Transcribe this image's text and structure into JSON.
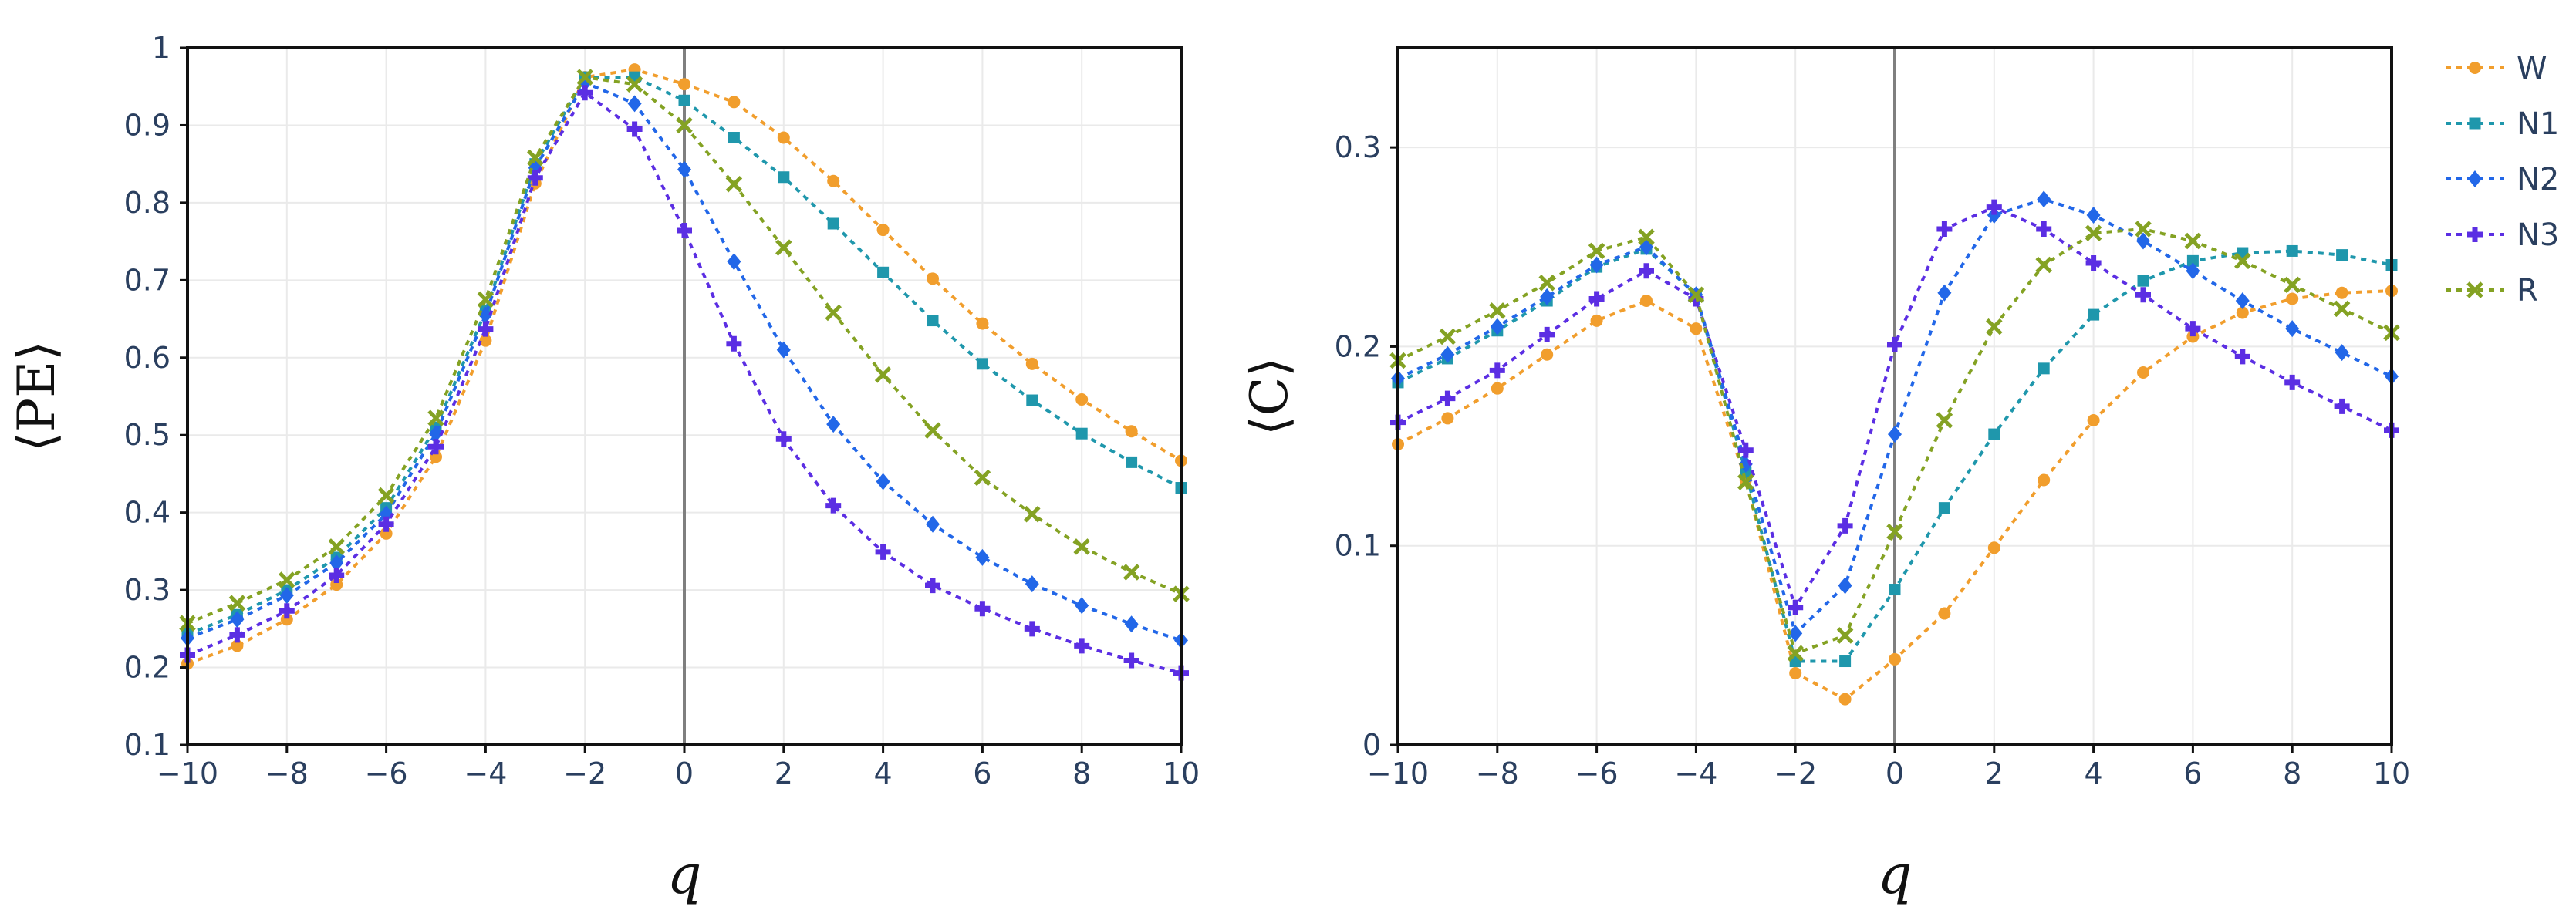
{
  "chart_data": [
    {
      "type": "line",
      "xlabel": "q",
      "ylabel": "⟨PE⟩",
      "xlim": [
        -10,
        10
      ],
      "ylim": [
        0.1,
        1.0
      ],
      "xticks": [
        -10,
        -8,
        -6,
        -4,
        -2,
        0,
        2,
        4,
        6,
        8,
        10
      ],
      "xtick_labels": [
        "−10",
        "−8",
        "−6",
        "−4",
        "−2",
        "0",
        "2",
        "4",
        "6",
        "8",
        "10"
      ],
      "yticks": [
        0.1,
        0.2,
        0.3,
        0.4,
        0.5,
        0.6,
        0.7,
        0.8,
        0.9,
        1.0
      ],
      "ytick_labels": [
        "0.1",
        "0.2",
        "0.3",
        "0.4",
        "0.5",
        "0.6",
        "0.7",
        "0.8",
        "0.9",
        "1"
      ],
      "grid": true,
      "zero_line_x": 0,
      "x": [
        -10,
        -9,
        -8,
        -7,
        -6,
        -5,
        -4,
        -3,
        -2,
        -1,
        0,
        1,
        2,
        3,
        4,
        5,
        6,
        7,
        8,
        9,
        10
      ],
      "series": [
        {
          "name": "W",
          "color": "#F19E2D",
          "marker": "circle",
          "values": [
            0.205,
            0.228,
            0.262,
            0.307,
            0.373,
            0.472,
            0.622,
            0.825,
            0.962,
            0.972,
            0.953,
            0.93,
            0.884,
            0.828,
            0.765,
            0.702,
            0.644,
            0.592,
            0.546,
            0.505,
            0.467
          ]
        },
        {
          "name": "N1",
          "color": "#1F97AC",
          "marker": "square",
          "values": [
            0.243,
            0.268,
            0.3,
            0.342,
            0.406,
            0.51,
            0.66,
            0.85,
            0.962,
            0.962,
            0.932,
            0.884,
            0.833,
            0.773,
            0.71,
            0.648,
            0.592,
            0.545,
            0.502,
            0.465,
            0.432
          ]
        },
        {
          "name": "N2",
          "color": "#2267E8",
          "marker": "diamond",
          "values": [
            0.238,
            0.262,
            0.293,
            0.335,
            0.398,
            0.502,
            0.655,
            0.845,
            0.955,
            0.928,
            0.843,
            0.724,
            0.61,
            0.514,
            0.44,
            0.385,
            0.342,
            0.308,
            0.28,
            0.256,
            0.235
          ]
        },
        {
          "name": "N3",
          "color": "#5B2EE3",
          "marker": "cross",
          "values": [
            0.216,
            0.242,
            0.273,
            0.319,
            0.385,
            0.485,
            0.637,
            0.832,
            0.942,
            0.895,
            0.764,
            0.618,
            0.495,
            0.409,
            0.349,
            0.306,
            0.276,
            0.25,
            0.228,
            0.209,
            0.193
          ]
        },
        {
          "name": "R",
          "color": "#84A223",
          "marker": "x",
          "values": [
            0.257,
            0.283,
            0.313,
            0.356,
            0.422,
            0.522,
            0.675,
            0.858,
            0.962,
            0.953,
            0.9,
            0.824,
            0.742,
            0.658,
            0.578,
            0.506,
            0.445,
            0.398,
            0.356,
            0.323,
            0.295
          ]
        }
      ]
    },
    {
      "type": "line",
      "xlabel": "q",
      "ylabel": "⟨C⟩",
      "xlim": [
        -10,
        10
      ],
      "ylim": [
        0,
        0.35
      ],
      "xticks": [
        -10,
        -8,
        -6,
        -4,
        -2,
        0,
        2,
        4,
        6,
        8,
        10
      ],
      "xtick_labels": [
        "−10",
        "−8",
        "−6",
        "−4",
        "−2",
        "0",
        "2",
        "4",
        "6",
        "8",
        "10"
      ],
      "yticks": [
        0,
        0.1,
        0.2,
        0.3
      ],
      "ytick_labels": [
        "0",
        "0.1",
        "0.2",
        "0.3"
      ],
      "grid": true,
      "zero_line_x": 0,
      "legend": "right",
      "x": [
        -10,
        -9,
        -8,
        -7,
        -6,
        -5,
        -4,
        -3,
        -2,
        -1,
        0,
        1,
        2,
        3,
        4,
        5,
        6,
        7,
        8,
        9,
        10
      ],
      "series": [
        {
          "name": "W",
          "color": "#F19E2D",
          "marker": "circle",
          "values": [
            0.151,
            0.164,
            0.179,
            0.196,
            0.213,
            0.223,
            0.209,
            0.133,
            0.036,
            0.023,
            0.043,
            0.066,
            0.099,
            0.133,
            0.163,
            0.187,
            0.205,
            0.217,
            0.224,
            0.227,
            0.228
          ]
        },
        {
          "name": "N1",
          "color": "#1F97AC",
          "marker": "square",
          "values": [
            0.182,
            0.194,
            0.208,
            0.223,
            0.24,
            0.249,
            0.226,
            0.137,
            0.042,
            0.042,
            0.078,
            0.119,
            0.156,
            0.189,
            0.216,
            0.233,
            0.243,
            0.247,
            0.248,
            0.246,
            0.241
          ]
        },
        {
          "name": "N2",
          "color": "#2267E8",
          "marker": "diamond",
          "values": [
            0.184,
            0.196,
            0.21,
            0.225,
            0.241,
            0.25,
            0.226,
            0.141,
            0.056,
            0.08,
            0.156,
            0.227,
            0.266,
            0.274,
            0.266,
            0.253,
            0.238,
            0.223,
            0.209,
            0.197,
            0.185
          ]
        },
        {
          "name": "N3",
          "color": "#5B2EE3",
          "marker": "cross",
          "values": [
            0.162,
            0.174,
            0.188,
            0.206,
            0.224,
            0.238,
            0.224,
            0.148,
            0.069,
            0.11,
            0.201,
            0.259,
            0.27,
            0.259,
            0.242,
            0.226,
            0.209,
            0.195,
            0.182,
            0.17,
            0.158
          ]
        },
        {
          "name": "R",
          "color": "#84A223",
          "marker": "x",
          "values": [
            0.193,
            0.205,
            0.218,
            0.232,
            0.248,
            0.255,
            0.226,
            0.132,
            0.046,
            0.055,
            0.107,
            0.163,
            0.21,
            0.241,
            0.257,
            0.259,
            0.253,
            0.243,
            0.231,
            0.219,
            0.207
          ]
        }
      ]
    }
  ]
}
